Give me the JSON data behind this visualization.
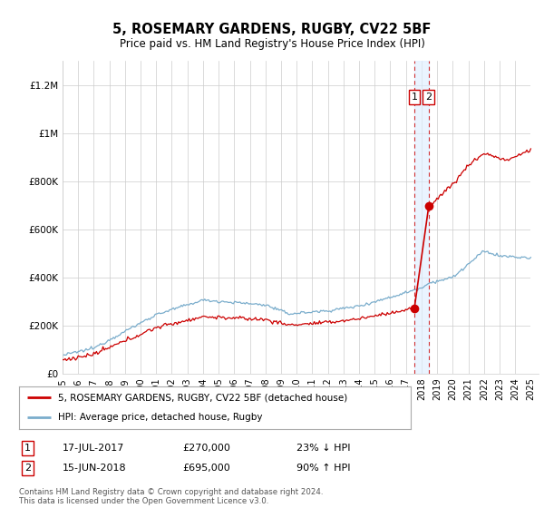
{
  "title": "5, ROSEMARY GARDENS, RUGBY, CV22 5BF",
  "subtitle": "Price paid vs. HM Land Registry's House Price Index (HPI)",
  "ylim": [
    0,
    1300000
  ],
  "yticks": [
    0,
    200000,
    400000,
    600000,
    800000,
    1000000,
    1200000
  ],
  "ytick_labels": [
    "£0",
    "£200K",
    "£400K",
    "£600K",
    "£800K",
    "£1M",
    "£1.2M"
  ],
  "legend_property_label": "5, ROSEMARY GARDENS, RUGBY, CV22 5BF (detached house)",
  "legend_hpi_label": "HPI: Average price, detached house, Rugby",
  "transaction1_label": "1",
  "transaction1_date": "17-JUL-2017",
  "transaction1_price": "£270,000",
  "transaction1_pct": "23% ↓ HPI",
  "transaction2_label": "2",
  "transaction2_date": "15-JUN-2018",
  "transaction2_price": "£695,000",
  "transaction2_pct": "90% ↑ HPI",
  "footer": "Contains HM Land Registry data © Crown copyright and database right 2024.\nThis data is licensed under the Open Government Licence v3.0.",
  "property_color": "#cc0000",
  "hpi_color": "#7aadcc",
  "dashed_line_color": "#cc0000",
  "marker1_x_year": 2017.54,
  "marker1_y_property": 270000,
  "marker2_x_year": 2018.46,
  "marker2_y_property": 695000,
  "background_color": "#ffffff",
  "grid_color": "#cccccc",
  "xlim_left": 1995,
  "xlim_right": 2025.5,
  "xlabel_years": [
    1995,
    1996,
    1997,
    1998,
    1999,
    2000,
    2001,
    2002,
    2003,
    2004,
    2005,
    2006,
    2007,
    2008,
    2009,
    2010,
    2011,
    2012,
    2013,
    2014,
    2015,
    2016,
    2017,
    2018,
    2019,
    2020,
    2021,
    2022,
    2023,
    2024,
    2025
  ]
}
